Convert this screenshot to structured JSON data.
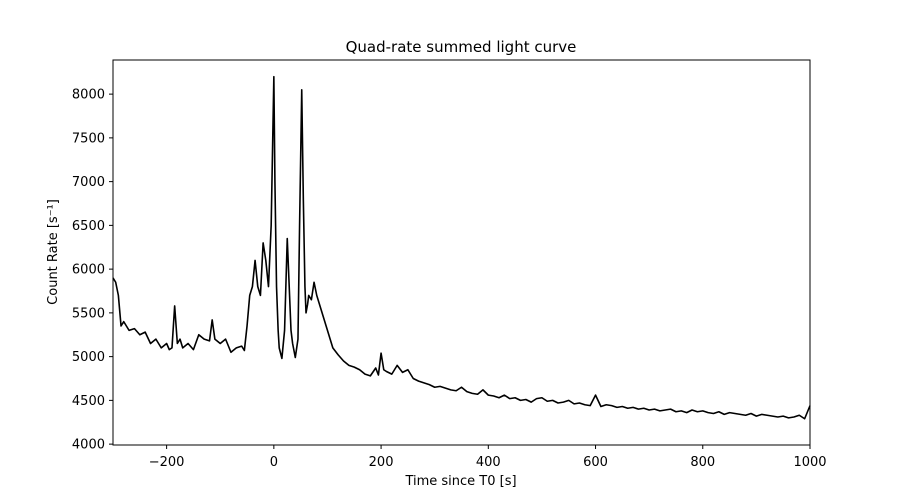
{
  "chart_data": {
    "type": "line",
    "title": "Quad-rate summed light curve",
    "xlabel": "Time since T0 [s]",
    "ylabel": "Count Rate [s⁻¹]",
    "xlim": [
      -300,
      1000
    ],
    "ylim": [
      3990,
      8390
    ],
    "xticks": [
      -200,
      0,
      200,
      400,
      600,
      800,
      1000
    ],
    "xtick_labels": [
      "−200",
      "0",
      "200",
      "400",
      "600",
      "800",
      "1000"
    ],
    "yticks": [
      4000,
      4500,
      5000,
      5500,
      6000,
      6500,
      7000,
      7500,
      8000
    ],
    "ytick_labels": [
      "4000",
      "4500",
      "5000",
      "5500",
      "6000",
      "6500",
      "7000",
      "7500",
      "8000"
    ],
    "grid": false,
    "line_color": "#000000",
    "series": [
      {
        "x": [
          -300,
          -295,
          -290,
          -285,
          -280,
          -270,
          -260,
          -250,
          -240,
          -230,
          -220,
          -210,
          -200,
          -195,
          -190,
          -185,
          -180,
          -175,
          -170,
          -160,
          -150,
          -140,
          -130,
          -120,
          -115,
          -110,
          -100,
          -90,
          -80,
          -70,
          -60,
          -55,
          -50,
          -45,
          -40,
          -35,
          -30,
          -25,
          -20,
          -15,
          -10,
          -5,
          0,
          2,
          5,
          8,
          10,
          15,
          20,
          25,
          28,
          32,
          35,
          40,
          45,
          48,
          52,
          55,
          58,
          60,
          63,
          65,
          70,
          75,
          80,
          85,
          90,
          100,
          110,
          120,
          130,
          140,
          150,
          160,
          170,
          180,
          190,
          195,
          200,
          205,
          210,
          220,
          230,
          240,
          250,
          260,
          270,
          280,
          290,
          300,
          310,
          320,
          330,
          340,
          350,
          360,
          370,
          380,
          390,
          400,
          410,
          420,
          430,
          440,
          450,
          460,
          470,
          480,
          490,
          500,
          510,
          520,
          530,
          540,
          550,
          560,
          570,
          580,
          590,
          600,
          610,
          620,
          630,
          640,
          650,
          660,
          670,
          680,
          690,
          700,
          710,
          720,
          730,
          740,
          750,
          760,
          770,
          780,
          790,
          800,
          810,
          820,
          830,
          840,
          850,
          860,
          870,
          880,
          890,
          900,
          910,
          920,
          930,
          940,
          950,
          960,
          970,
          980,
          990,
          1000
        ],
        "y": [
          5900,
          5850,
          5700,
          5350,
          5400,
          5300,
          5320,
          5250,
          5280,
          5150,
          5200,
          5100,
          5150,
          5080,
          5100,
          5580,
          5150,
          5200,
          5100,
          5150,
          5080,
          5250,
          5200,
          5180,
          5420,
          5200,
          5150,
          5200,
          5050,
          5100,
          5120,
          5070,
          5350,
          5700,
          5800,
          6100,
          5800,
          5700,
          6300,
          6100,
          5800,
          6500,
          8200,
          7000,
          5800,
          5300,
          5100,
          4980,
          5300,
          6350,
          5900,
          5300,
          5150,
          4990,
          5200,
          6500,
          8050,
          6800,
          5800,
          5500,
          5600,
          5700,
          5650,
          5850,
          5700,
          5600,
          5500,
          5300,
          5100,
          5020,
          4950,
          4900,
          4880,
          4850,
          4800,
          4780,
          4870,
          4790,
          5040,
          4850,
          4830,
          4800,
          4900,
          4820,
          4850,
          4750,
          4720,
          4700,
          4680,
          4650,
          4660,
          4640,
          4620,
          4610,
          4650,
          4600,
          4580,
          4570,
          4620,
          4560,
          4550,
          4530,
          4560,
          4520,
          4530,
          4500,
          4510,
          4480,
          4520,
          4530,
          4490,
          4500,
          4470,
          4480,
          4500,
          4460,
          4470,
          4450,
          4440,
          4560,
          4430,
          4450,
          4440,
          4420,
          4430,
          4410,
          4420,
          4400,
          4410,
          4390,
          4400,
          4380,
          4390,
          4400,
          4370,
          4380,
          4360,
          4390,
          4370,
          4380,
          4360,
          4350,
          4370,
          4340,
          4360,
          4350,
          4340,
          4330,
          4350,
          4320,
          4340,
          4330,
          4320,
          4310,
          4320,
          4300,
          4310,
          4330,
          4290,
          4440
        ]
      }
    ]
  }
}
